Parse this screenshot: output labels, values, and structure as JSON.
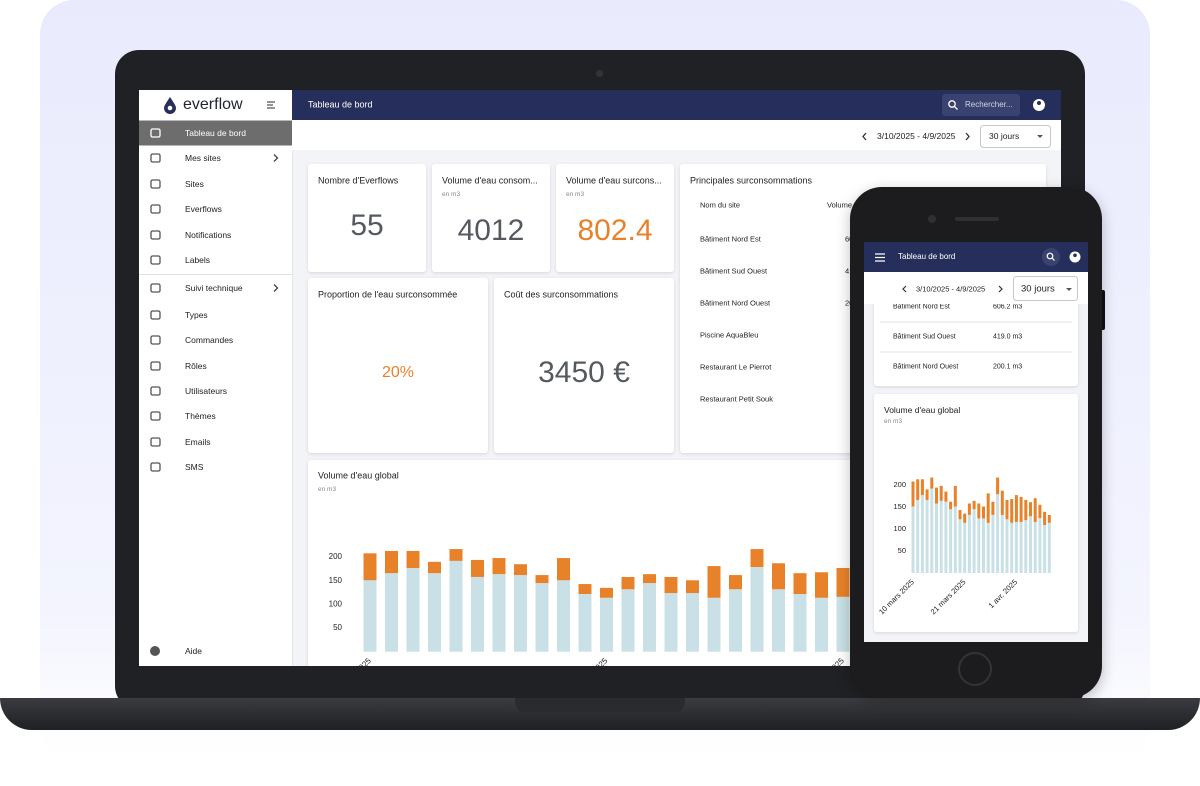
{
  "sidebar": {
    "logo": "everflow",
    "items": [
      {
        "label": "Tableau de bord",
        "active": true
      },
      {
        "label": "Mes sites",
        "has_submenu": true
      },
      {
        "label": "Sites"
      },
      {
        "label": "Everflows"
      },
      {
        "label": "Notifications"
      },
      {
        "label": "Labels"
      },
      {
        "label": "Suivi technique",
        "has_submenu": true
      },
      {
        "label": "Types"
      },
      {
        "label": "Commandes"
      },
      {
        "label": "Rôles"
      },
      {
        "label": "Utilisateurs"
      },
      {
        "label": "Thèmes"
      },
      {
        "label": "Emails"
      },
      {
        "label": "SMS"
      }
    ],
    "footer_item": "Aide"
  },
  "header": {
    "title": "Tableau de bord",
    "search_placeholder": "Rechercher..."
  },
  "date_filter": {
    "range": "3/10/2025 - 4/9/2025",
    "period": "30 jours"
  },
  "kpis": [
    {
      "title": "Nombre d'Everflows",
      "value": 55,
      "color": "#555a60"
    },
    {
      "title": "Volume d'eau consom...",
      "unit": "en m3",
      "value": 4012,
      "color": "#555a60"
    },
    {
      "title": "Volume d'eau surcons...",
      "unit": "en m3",
      "value": 802.4,
      "color": "#e8822a"
    }
  ],
  "donut": {
    "title": "Proportion de l'eau surconsommée",
    "value": 20,
    "value_label": "20%",
    "color": "#e8822a",
    "track_color": "#cfe3e8"
  },
  "cost": {
    "title": "Coût des surconsommations",
    "value": "3450 €"
  },
  "table": {
    "title": "Principales surconsommations",
    "columns": [
      "Nom du site",
      "Volume"
    ],
    "rows": [
      {
        "site": "Bâtiment Nord Est",
        "volume": "606.2 m3"
      },
      {
        "site": "Bâtiment Sud Ouest",
        "volume": "419.0 m3"
      },
      {
        "site": "Bâtiment Nord Ouest",
        "volume": "200.1 m3"
      },
      {
        "site": "Piscine AquaBleu"
      },
      {
        "site": "Restaurant Le Pierrot"
      },
      {
        "site": "Restaurant Petit Souk"
      }
    ]
  },
  "chart_data": {
    "type": "bar",
    "stacked": true,
    "title": "Volume d'eau global",
    "subtitle": "en m3",
    "categories": [
      "10 mars 2025",
      null,
      null,
      null,
      null,
      null,
      null,
      null,
      null,
      null,
      null,
      "21 mars 2025",
      null,
      null,
      null,
      null,
      null,
      null,
      null,
      null,
      null,
      null,
      "1 avr. 2025",
      null,
      null,
      null,
      null,
      null,
      null,
      null
    ],
    "series": [
      {
        "color": "#c9e1e6",
        "values": [
          151,
          166,
          177,
          166,
          192,
          158,
          164,
          162,
          145,
          151,
          122,
          114,
          132,
          145,
          124,
          124,
          114,
          132,
          179,
          132,
          122,
          114,
          116,
          116,
          120,
          129,
          116,
          125,
          109,
          114
        ]
      },
      {
        "color": "#e8822a",
        "values": [
          57,
          47,
          36,
          24,
          25,
          36,
          34,
          23,
          17,
          47,
          21,
          21,
          26,
          19,
          34,
          27,
          67,
          30,
          38,
          55,
          44,
          54,
          61,
          57,
          46,
          32,
          54,
          30,
          30,
          18
        ]
      }
    ],
    "ylim": [
      0,
      220
    ],
    "yticks": [
      50,
      100,
      150,
      200
    ]
  }
}
